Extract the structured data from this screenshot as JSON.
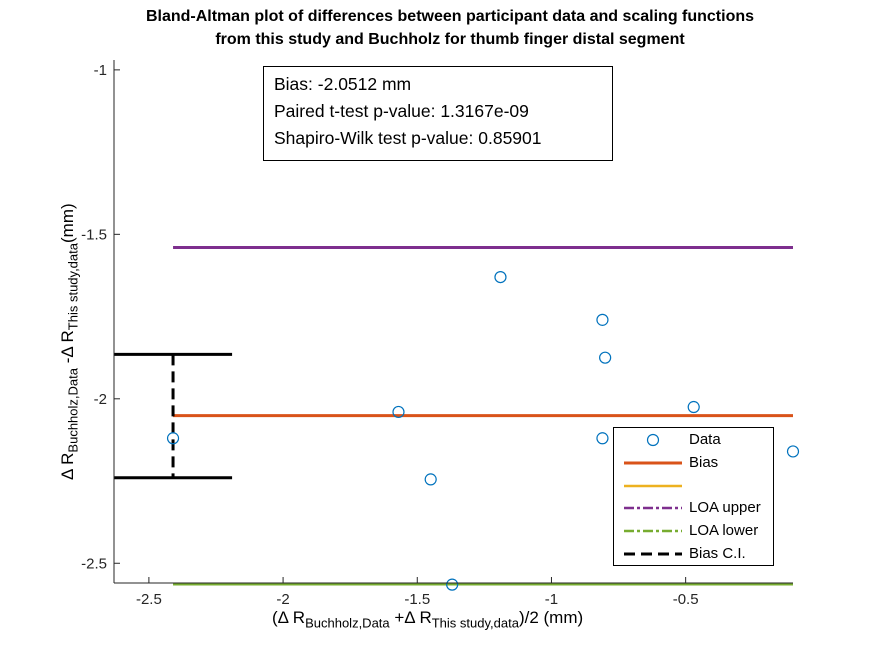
{
  "chart_data": {
    "type": "scatter",
    "title_line1": "Bland-Altman plot of differences between participant data and scaling functions",
    "title_line2": "from this study and Buchholz for thumb finger distal segment",
    "xlabel": {
      "pre": "(Δ R",
      "sub1": "Buchholz,Data",
      "mid": " +Δ R",
      "sub2": "This study,data",
      "post": ")/2 (mm)"
    },
    "ylabel": {
      "pre": "Δ R",
      "sub1": "Buchholz,Data",
      "mid": " -Δ R",
      "sub2": "This study,data",
      "post": "(mm)"
    },
    "xlim": [
      -2.63,
      -0.1
    ],
    "ylim": [
      -2.56,
      -0.97
    ],
    "x_ticks": [
      -2.5,
      -2,
      -1.5,
      -1,
      -0.5
    ],
    "x_tick_labels": [
      "-2.5",
      "-2",
      "-1.5",
      "-1",
      "-0.5"
    ],
    "y_ticks": [
      -1,
      -1.5,
      -2,
      -2.5
    ],
    "y_tick_labels": [
      "-1",
      "-1.5",
      "-2",
      "-2.5"
    ],
    "grid": false,
    "series": [
      {
        "name": "Data",
        "kind": "scatter",
        "color": "#0072BD",
        "x": [
          -2.41,
          -1.57,
          -1.45,
          -1.37,
          -1.19,
          -0.81,
          -0.8,
          -0.81,
          -0.47,
          -0.1
        ],
        "y": [
          -2.12,
          -2.04,
          -2.245,
          -2.565,
          -1.63,
          -1.76,
          -1.875,
          -2.12,
          -2.025,
          -2.16
        ]
      },
      {
        "name": "Bias",
        "kind": "hline",
        "color": "#D95319",
        "y": -2.0512,
        "x_range": [
          -2.41,
          -0.1
        ]
      },
      {
        "name": "",
        "kind": "legend-only",
        "color": "#EDB120"
      },
      {
        "name": "LOA upper",
        "kind": "hline",
        "color": "#7E2F8E",
        "y": -1.54,
        "x_range": [
          -2.41,
          -0.1
        ]
      },
      {
        "name": "LOA lower",
        "kind": "hline",
        "color": "#77AC30",
        "y": -2.563,
        "x_range": [
          -2.41,
          -0.1
        ]
      },
      {
        "name": "Bias C.I.",
        "kind": "errorbar",
        "color": "#000000",
        "x": -2.41,
        "y_low": -2.24,
        "y_high": -1.865,
        "cap_x_range": [
          -2.63,
          -2.19
        ]
      }
    ],
    "annotations": [
      "Bias: -2.0512 mm",
      "Paired t-test p-value: 1.3167e-09",
      "Shapiro-Wilk test p-value: 0.85901"
    ],
    "legend_position": "bottom-right"
  }
}
